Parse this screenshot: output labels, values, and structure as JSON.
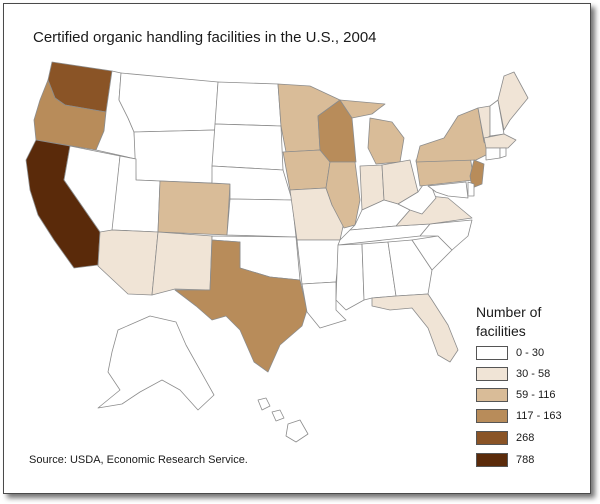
{
  "title": "Certified organic handling facilities in the U.S., 2004",
  "source": "Source:  USDA, Economic Research Service.",
  "legend": {
    "title_line1": "Number of",
    "title_line2": "facilities",
    "items": [
      {
        "label": "0 - 30",
        "color": "#ffffff"
      },
      {
        "label": "30 - 58",
        "color": "#f0e4d6"
      },
      {
        "label": "59 - 116",
        "color": "#d9bc98"
      },
      {
        "label": "117 - 163",
        "color": "#b88c5a"
      },
      {
        "label": "268",
        "color": "#8a5426"
      },
      {
        "label": "788",
        "color": "#5a2a0a"
      }
    ]
  },
  "states": [
    {
      "id": "WA",
      "class": 4
    },
    {
      "id": "OR",
      "class": 3
    },
    {
      "id": "CA",
      "class": 5
    },
    {
      "id": "ID",
      "class": 0
    },
    {
      "id": "NV",
      "class": 0
    },
    {
      "id": "MT",
      "class": 0
    },
    {
      "id": "WY",
      "class": 0
    },
    {
      "id": "UT",
      "class": 0
    },
    {
      "id": "CO",
      "class": 2
    },
    {
      "id": "AZ",
      "class": 1
    },
    {
      "id": "NM",
      "class": 1
    },
    {
      "id": "ND",
      "class": 0
    },
    {
      "id": "SD",
      "class": 0
    },
    {
      "id": "NE",
      "class": 0
    },
    {
      "id": "KS",
      "class": 0
    },
    {
      "id": "OK",
      "class": 0
    },
    {
      "id": "TX",
      "class": 3
    },
    {
      "id": "MN",
      "class": 2
    },
    {
      "id": "IA",
      "class": 2
    },
    {
      "id": "MO",
      "class": 1
    },
    {
      "id": "AR",
      "class": 0
    },
    {
      "id": "LA",
      "class": 0
    },
    {
      "id": "WI",
      "class": 3
    },
    {
      "id": "IL",
      "class": 2
    },
    {
      "id": "MI",
      "class": 2
    },
    {
      "id": "IN",
      "class": 1
    },
    {
      "id": "OH",
      "class": 1
    },
    {
      "id": "KY",
      "class": 0
    },
    {
      "id": "TN",
      "class": 0
    },
    {
      "id": "MS",
      "class": 0
    },
    {
      "id": "AL",
      "class": 0
    },
    {
      "id": "GA",
      "class": 0
    },
    {
      "id": "FL",
      "class": 1
    },
    {
      "id": "SC",
      "class": 0
    },
    {
      "id": "NC",
      "class": 0
    },
    {
      "id": "VA",
      "class": 1
    },
    {
      "id": "WV",
      "class": 0
    },
    {
      "id": "PA",
      "class": 2
    },
    {
      "id": "NY",
      "class": 2
    },
    {
      "id": "NJ",
      "class": 3
    },
    {
      "id": "DE",
      "class": 0
    },
    {
      "id": "MD",
      "class": 0
    },
    {
      "id": "VT",
      "class": 1
    },
    {
      "id": "NH",
      "class": 0
    },
    {
      "id": "ME",
      "class": 1
    },
    {
      "id": "MA",
      "class": 1
    },
    {
      "id": "CT",
      "class": 0
    },
    {
      "id": "RI",
      "class": 0
    },
    {
      "id": "AK",
      "class": 0
    },
    {
      "id": "HI",
      "class": 0
    }
  ]
}
